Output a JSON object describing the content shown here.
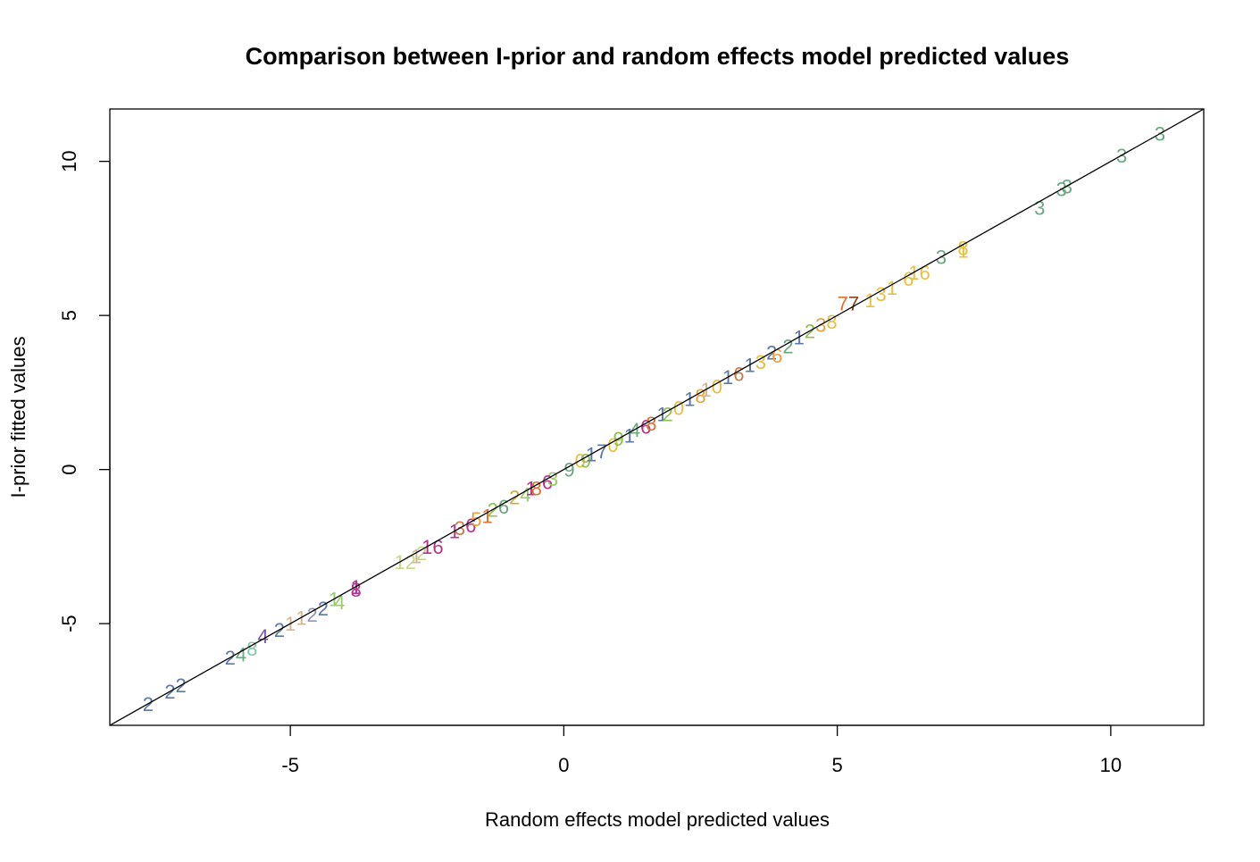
{
  "chart_data": {
    "type": "scatter",
    "title": "Comparison between I-prior and random effects model predicted values",
    "xlabel": "Random effects model predicted values",
    "ylabel": "I-prior fitted values",
    "xlim": [
      -8.3,
      11.7
    ],
    "ylim": [
      -8.3,
      11.7
    ],
    "x_ticks": [
      -5,
      0,
      5,
      10
    ],
    "y_ticks": [
      -5,
      0,
      5,
      10
    ],
    "x_tick_labels": [
      "-5",
      "0",
      "5",
      "10"
    ],
    "y_tick_labels": [
      "-5",
      "0",
      "5",
      "10"
    ],
    "reference_line": {
      "intercept": 0,
      "slope": 1
    },
    "grid": false,
    "legend": "none",
    "points": [
      {
        "x": -7.6,
        "y": -7.6,
        "label": "2",
        "color": "#5b79a8"
      },
      {
        "x": -7.2,
        "y": -7.2,
        "label": "2",
        "color": "#5b79a8"
      },
      {
        "x": -7.0,
        "y": -7.0,
        "label": "2",
        "color": "#5b79a8"
      },
      {
        "x": -6.1,
        "y": -6.1,
        "label": "2",
        "color": "#5b79a8"
      },
      {
        "x": -5.9,
        "y": -6.0,
        "label": "4",
        "color": "#6aa77f"
      },
      {
        "x": -5.7,
        "y": -5.8,
        "label": "8",
        "color": "#7ec8a4"
      },
      {
        "x": -5.5,
        "y": -5.4,
        "label": "4",
        "color": "#7b56a3"
      },
      {
        "x": -5.2,
        "y": -5.2,
        "label": "2",
        "color": "#5b79a8"
      },
      {
        "x": -5.0,
        "y": -5.0,
        "label": "1",
        "color": "#d3b590"
      },
      {
        "x": -4.8,
        "y": -4.8,
        "label": "1",
        "color": "#d3b590"
      },
      {
        "x": -4.6,
        "y": -4.7,
        "label": "2",
        "color": "#8a98b8"
      },
      {
        "x": -4.4,
        "y": -4.5,
        "label": "2",
        "color": "#5b79a8"
      },
      {
        "x": -4.2,
        "y": -4.2,
        "label": "1",
        "color": "#99cc66"
      },
      {
        "x": -4.1,
        "y": -4.3,
        "label": "4",
        "color": "#99cc66"
      },
      {
        "x": -3.8,
        "y": -3.8,
        "label": "1",
        "color": "#b5338b"
      },
      {
        "x": -3.8,
        "y": -3.9,
        "label": "8",
        "color": "#b5338b"
      },
      {
        "x": -3.0,
        "y": -3.0,
        "label": "1",
        "color": "#c4d88a"
      },
      {
        "x": -2.8,
        "y": -3.0,
        "label": "2",
        "color": "#c4d88a"
      },
      {
        "x": -2.7,
        "y": -2.8,
        "label": "1",
        "color": "#d3b590"
      },
      {
        "x": -2.6,
        "y": -2.7,
        "label": "2",
        "color": "#c4d88a"
      },
      {
        "x": -2.5,
        "y": -2.5,
        "label": "1",
        "color": "#b5338b"
      },
      {
        "x": -2.3,
        "y": -2.5,
        "label": "6",
        "color": "#b5338b"
      },
      {
        "x": -2.0,
        "y": -2.0,
        "label": "1",
        "color": "#b5338b"
      },
      {
        "x": -1.9,
        "y": -1.9,
        "label": "3",
        "color": "#c97b4a"
      },
      {
        "x": -1.7,
        "y": -1.8,
        "label": "6",
        "color": "#b5338b"
      },
      {
        "x": -1.6,
        "y": -1.6,
        "label": "5",
        "color": "#e8a040"
      },
      {
        "x": -1.4,
        "y": -1.5,
        "label": "1",
        "color": "#e07030"
      },
      {
        "x": -1.3,
        "y": -1.3,
        "label": "2",
        "color": "#8fbf4f"
      },
      {
        "x": -1.1,
        "y": -1.2,
        "label": "6",
        "color": "#6aa77f"
      },
      {
        "x": -0.9,
        "y": -0.9,
        "label": "2",
        "color": "#c8b040"
      },
      {
        "x": -0.7,
        "y": -0.8,
        "label": "4",
        "color": "#99cc66"
      },
      {
        "x": -0.6,
        "y": -0.6,
        "label": "1",
        "color": "#b5338b"
      },
      {
        "x": -0.5,
        "y": -0.6,
        "label": "8",
        "color": "#e07030"
      },
      {
        "x": -0.3,
        "y": -0.4,
        "label": "6",
        "color": "#b5338b"
      },
      {
        "x": -0.2,
        "y": -0.3,
        "label": "3",
        "color": "#99cc66"
      },
      {
        "x": 0.1,
        "y": 0.0,
        "label": "9",
        "color": "#6aa77f"
      },
      {
        "x": 0.3,
        "y": 0.3,
        "label": "0",
        "color": "#e8c040"
      },
      {
        "x": 0.4,
        "y": 0.3,
        "label": "9",
        "color": "#8fbf4f"
      },
      {
        "x": 0.5,
        "y": 0.5,
        "label": "1",
        "color": "#5b79a8"
      },
      {
        "x": 0.7,
        "y": 0.6,
        "label": "7",
        "color": "#5b79a8"
      },
      {
        "x": 0.9,
        "y": 0.8,
        "label": "0",
        "color": "#e8c040"
      },
      {
        "x": 1.0,
        "y": 1.0,
        "label": "9",
        "color": "#8fbf4f"
      },
      {
        "x": 1.2,
        "y": 1.1,
        "label": "1",
        "color": "#5b79a8"
      },
      {
        "x": 1.3,
        "y": 1.3,
        "label": "4",
        "color": "#6aa77f"
      },
      {
        "x": 1.5,
        "y": 1.4,
        "label": "6",
        "color": "#b5338b"
      },
      {
        "x": 1.6,
        "y": 1.5,
        "label": "8",
        "color": "#e07030"
      },
      {
        "x": 1.8,
        "y": 1.8,
        "label": "1",
        "color": "#5b79a8"
      },
      {
        "x": 1.9,
        "y": 1.8,
        "label": "2",
        "color": "#8fbf4f"
      },
      {
        "x": 2.1,
        "y": 2.0,
        "label": "0",
        "color": "#e8c040"
      },
      {
        "x": 2.3,
        "y": 2.3,
        "label": "1",
        "color": "#5b79a8"
      },
      {
        "x": 2.5,
        "y": 2.4,
        "label": "8",
        "color": "#e8a040"
      },
      {
        "x": 2.6,
        "y": 2.6,
        "label": "1",
        "color": "#d3b590"
      },
      {
        "x": 2.8,
        "y": 2.7,
        "label": "0",
        "color": "#e8c040"
      },
      {
        "x": 3.0,
        "y": 3.0,
        "label": "1",
        "color": "#5b79a8"
      },
      {
        "x": 3.2,
        "y": 3.1,
        "label": "6",
        "color": "#c97b4a"
      },
      {
        "x": 3.4,
        "y": 3.4,
        "label": "1",
        "color": "#5b79a8"
      },
      {
        "x": 3.6,
        "y": 3.5,
        "label": "3",
        "color": "#e8c040"
      },
      {
        "x": 3.8,
        "y": 3.8,
        "label": "2",
        "color": "#5b79a8"
      },
      {
        "x": 3.9,
        "y": 3.7,
        "label": "6",
        "color": "#e8a040"
      },
      {
        "x": 4.1,
        "y": 4.0,
        "label": "2",
        "color": "#6aa77f"
      },
      {
        "x": 4.3,
        "y": 4.3,
        "label": "1",
        "color": "#5b79a8"
      },
      {
        "x": 4.5,
        "y": 4.5,
        "label": "2",
        "color": "#8fbf4f"
      },
      {
        "x": 4.7,
        "y": 4.7,
        "label": "3",
        "color": "#e8a040"
      },
      {
        "x": 4.9,
        "y": 4.8,
        "label": "8",
        "color": "#e8c040"
      },
      {
        "x": 5.1,
        "y": 5.4,
        "label": "7",
        "color": "#e07030"
      },
      {
        "x": 5.3,
        "y": 5.4,
        "label": "7",
        "color": "#8b4020"
      },
      {
        "x": 5.6,
        "y": 5.5,
        "label": "1",
        "color": "#e8c040"
      },
      {
        "x": 5.8,
        "y": 5.7,
        "label": "3",
        "color": "#e8c040"
      },
      {
        "x": 6.0,
        "y": 5.9,
        "label": "1",
        "color": "#e8c040"
      },
      {
        "x": 6.3,
        "y": 6.2,
        "label": "6",
        "color": "#e8c040"
      },
      {
        "x": 6.4,
        "y": 6.4,
        "label": "1",
        "color": "#e8c040"
      },
      {
        "x": 6.6,
        "y": 6.4,
        "label": "6",
        "color": "#e8c040"
      },
      {
        "x": 6.9,
        "y": 6.9,
        "label": "3",
        "color": "#6aa77f"
      },
      {
        "x": 7.3,
        "y": 7.1,
        "label": "1",
        "color": "#e8c040"
      },
      {
        "x": 7.3,
        "y": 7.2,
        "label": "8",
        "color": "#e8c040"
      },
      {
        "x": 8.7,
        "y": 8.5,
        "label": "3",
        "color": "#6aa77f"
      },
      {
        "x": 9.1,
        "y": 9.1,
        "label": "3",
        "color": "#6aa77f"
      },
      {
        "x": 9.2,
        "y": 9.2,
        "label": "3",
        "color": "#6aa77f"
      },
      {
        "x": 10.2,
        "y": 10.2,
        "label": "3",
        "color": "#6aa77f"
      },
      {
        "x": 10.9,
        "y": 10.9,
        "label": "3",
        "color": "#6aa77f"
      }
    ]
  }
}
